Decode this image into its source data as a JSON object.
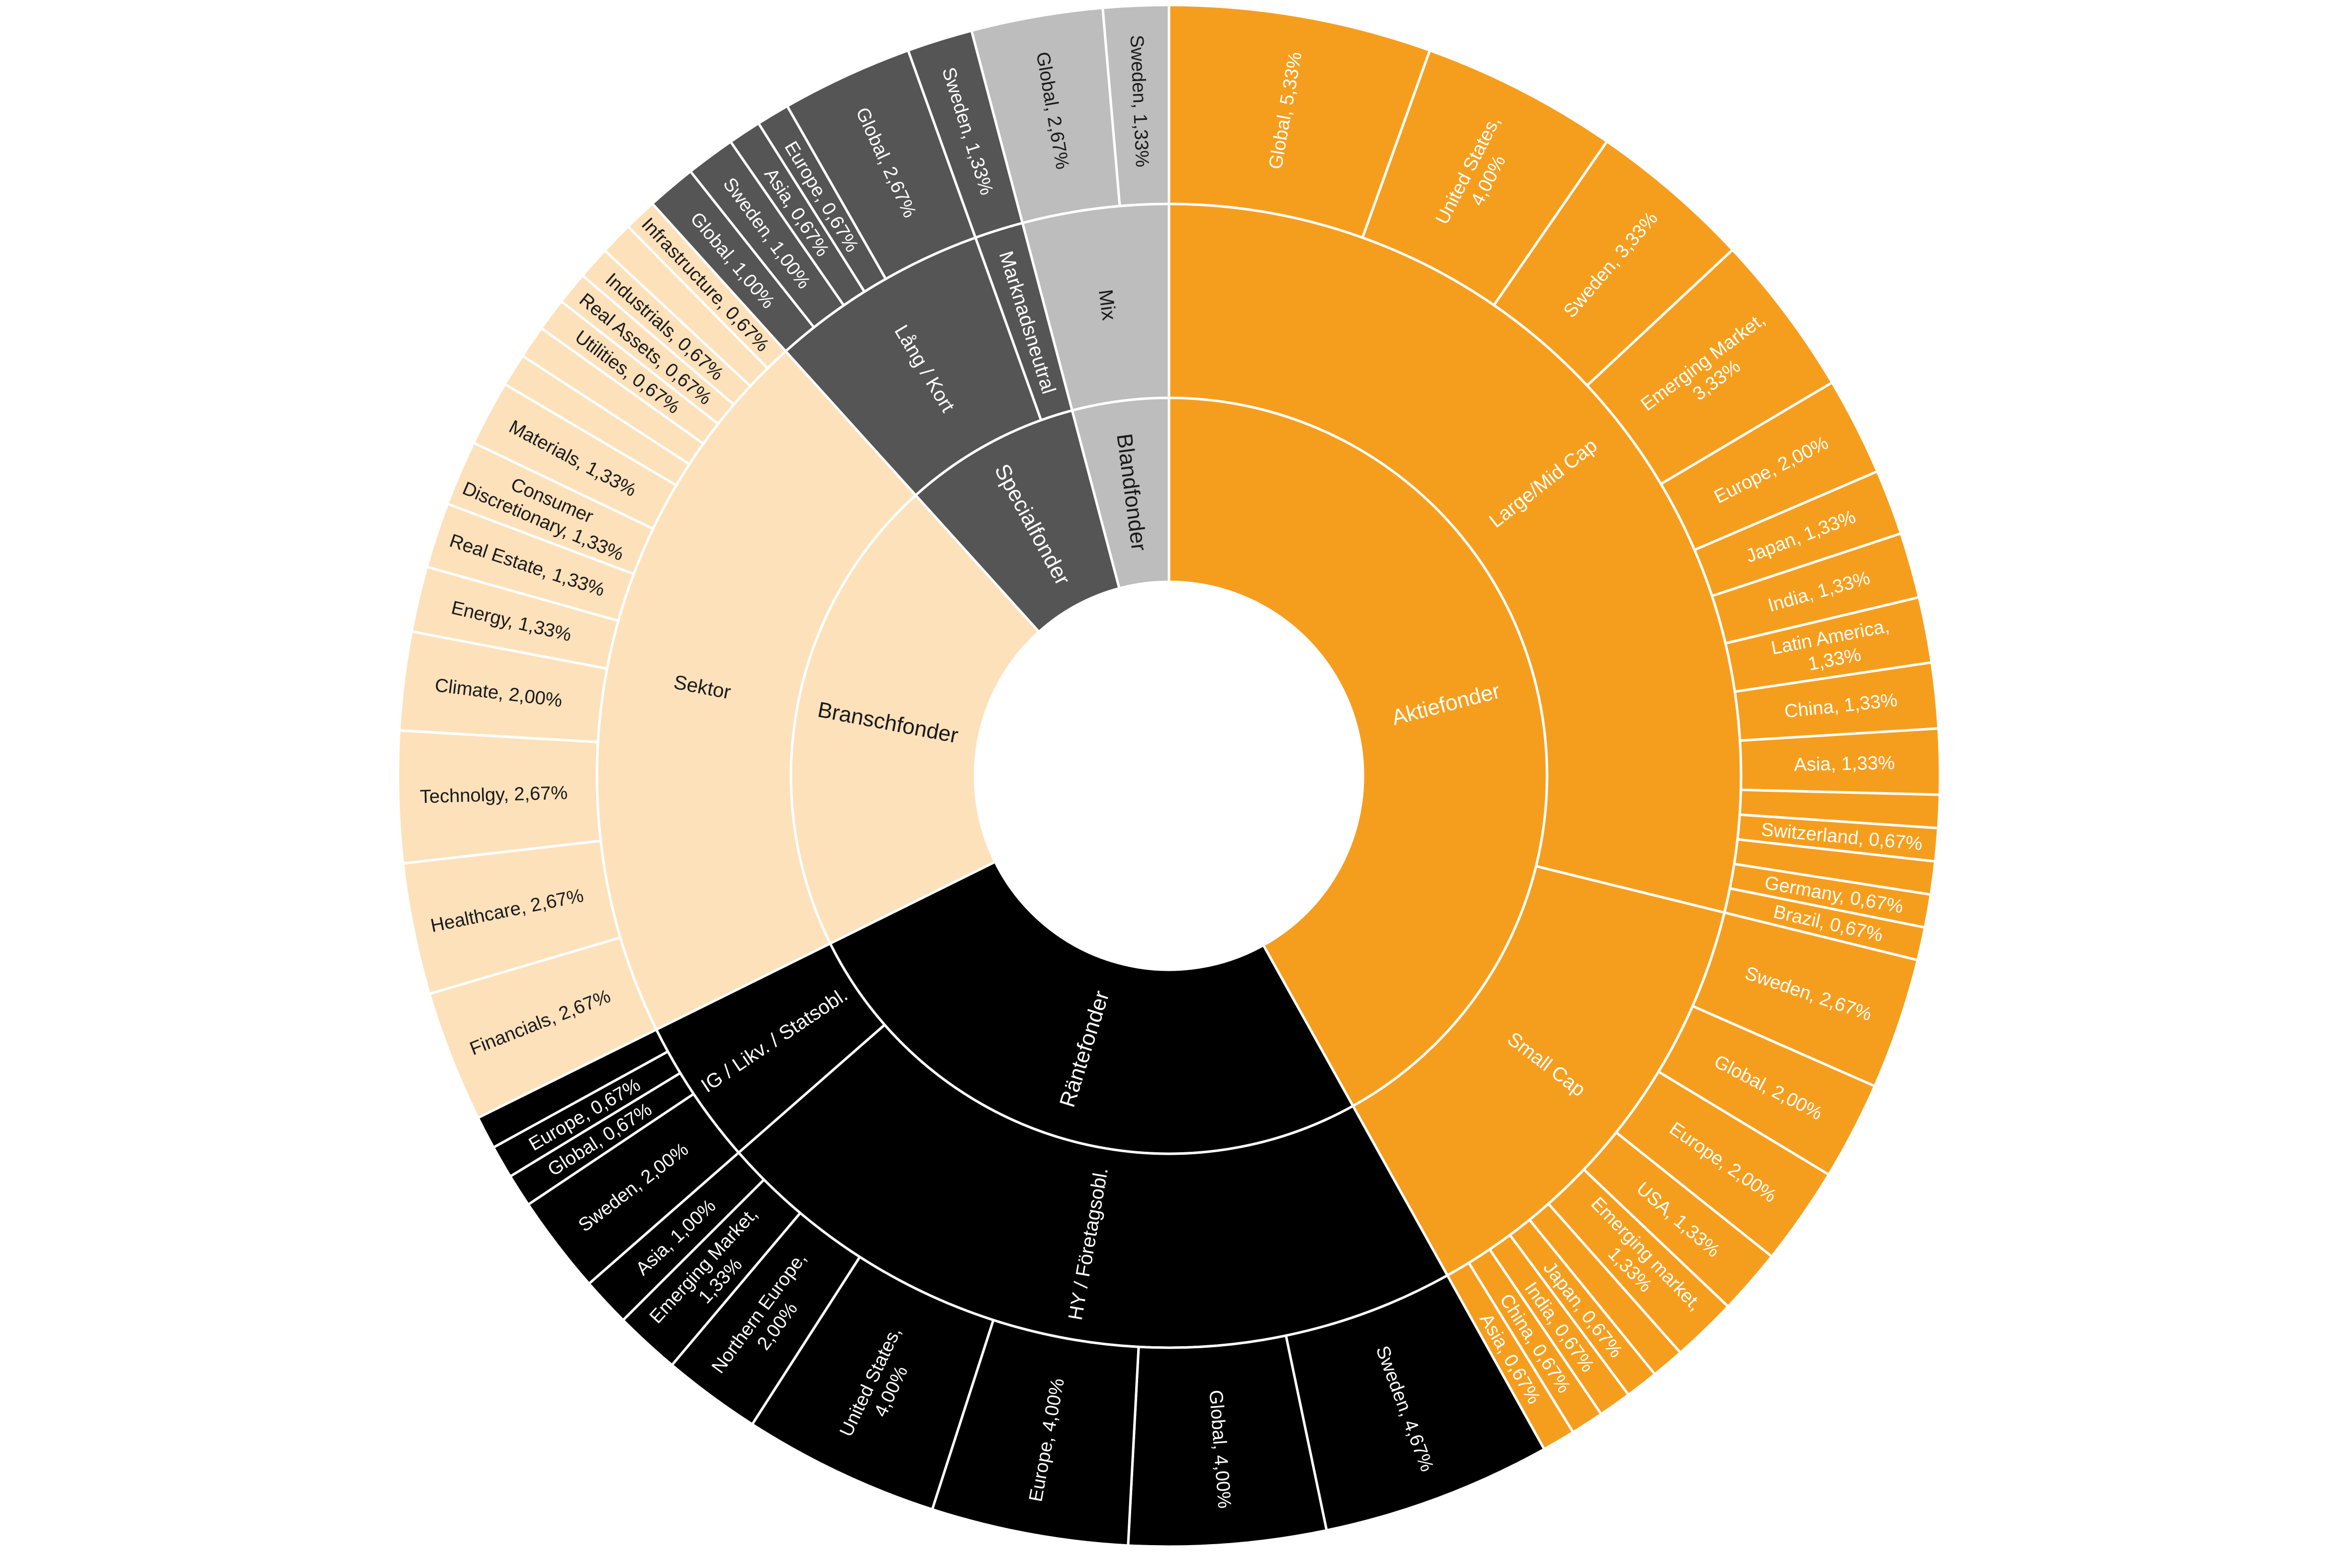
{
  "chart_data": {
    "type": "sunburst",
    "colors": {
      "Aktiefonder": "#F59E1E",
      "Räntefonder": "#000000",
      "Branschfonder": "#FCE1BB",
      "Specialfonder": "#555555",
      "Blandfonder": "#BDBDBD",
      "text_dark": "#1a1a1a",
      "text_light": "#ffffff",
      "border": "#ffffff"
    },
    "tree": [
      {
        "name": "Aktiefonder",
        "children": [
          {
            "name": "Large/Mid Cap",
            "children": [
              {
                "name": "Global",
                "value": 5.33
              },
              {
                "name": "United States",
                "value": 4.0,
                "label": "United States,\n4,00%"
              },
              {
                "name": "Sweden",
                "value": 3.33
              },
              {
                "name": "Emerging Market",
                "value": 3.33,
                "label": "Emerging Market,\n3,33%"
              },
              {
                "name": "Europe",
                "value": 2.0
              },
              {
                "name": "Japan",
                "value": 1.33
              },
              {
                "name": "India",
                "value": 1.33
              },
              {
                "name": "Latin America",
                "value": 1.33,
                "label": "Latin America,\n1,33%"
              },
              {
                "name": "China",
                "value": 1.33
              },
              {
                "name": "Asia",
                "value": 1.33
              },
              {
                "name": "",
                "value": 0.67,
                "label": ""
              },
              {
                "name": "Switzerland",
                "value": 0.67
              },
              {
                "name": "",
                "value": 0.67,
                "label": ""
              },
              {
                "name": "Germany",
                "value": 0.67
              },
              {
                "name": "Brazil",
                "value": 0.67
              }
            ]
          },
          {
            "name": "Small Cap",
            "children": [
              {
                "name": "Sweden",
                "value": 2.67
              },
              {
                "name": "Global",
                "value": 2.0
              },
              {
                "name": "Europe",
                "value": 2.0
              },
              {
                "name": "USA",
                "value": 1.33
              },
              {
                "name": "Emerging market",
                "value": 1.33,
                "label": "Emerging market,\n1,33%"
              },
              {
                "name": "",
                "value": 0.67,
                "label": ""
              },
              {
                "name": "Japan",
                "value": 0.67
              },
              {
                "name": "India",
                "value": 0.67
              },
              {
                "name": "China",
                "value": 0.67
              },
              {
                "name": "Asia",
                "value": 0.67
              }
            ]
          }
        ]
      },
      {
        "name": "Räntefonder",
        "children": [
          {
            "name": "HY / Företagsobl.",
            "children": [
              {
                "name": "Sweden",
                "value": 4.67
              },
              {
                "name": "Global",
                "value": 4.0
              },
              {
                "name": "Europe",
                "value": 4.0
              },
              {
                "name": "United States",
                "value": 4.0,
                "label": "United States,\n4,00%"
              },
              {
                "name": "Northern Europe",
                "value": 2.0,
                "label": "Northern Europe,\n2,00%"
              },
              {
                "name": "Emerging Market",
                "value": 1.33,
                "label": "Emerging Market,\n1,33%"
              },
              {
                "name": "Asia",
                "value": 1.0
              }
            ]
          },
          {
            "name": "IG / Likv. / Statsobl.",
            "children": [
              {
                "name": "Sweden",
                "value": 2.0
              },
              {
                "name": "Global",
                "value": 0.67
              },
              {
                "name": "Europe",
                "value": 0.67
              },
              {
                "name": "",
                "value": 0.67,
                "label": ""
              }
            ]
          }
        ]
      },
      {
        "name": "Branschfonder",
        "children": [
          {
            "name": "Sektor",
            "children": [
              {
                "name": "Financials",
                "value": 2.67
              },
              {
                "name": "Healthcare",
                "value": 2.67
              },
              {
                "name": "Technolgy",
                "value": 2.67
              },
              {
                "name": "Climate",
                "value": 2.0
              },
              {
                "name": "Energy",
                "value": 1.33
              },
              {
                "name": "Real Estate",
                "value": 1.33
              },
              {
                "name": "Consumer Discretionary",
                "value": 1.33,
                "label": "Consumer\nDiscretionary, 1,33%"
              },
              {
                "name": "Materials",
                "value": 1.33
              },
              {
                "name": "",
                "value": 0.67,
                "label": ""
              },
              {
                "name": "",
                "value": 0.67,
                "label": ""
              },
              {
                "name": "Utilities",
                "value": 0.67
              },
              {
                "name": "Real Assets",
                "value": 0.67
              },
              {
                "name": "Industrials",
                "value": 0.67
              },
              {
                "name": "",
                "value": 0.67,
                "label": ""
              },
              {
                "name": "Infrastructure",
                "value": 0.67
              }
            ]
          }
        ]
      },
      {
        "name": "Specialfonder",
        "children": [
          {
            "name": "Lång / Kort",
            "children": [
              {
                "name": "Global",
                "value": 1.0
              },
              {
                "name": "Sweden",
                "value": 1.0
              },
              {
                "name": "Asia",
                "value": 0.67
              },
              {
                "name": "Europe",
                "value": 0.67
              },
              {
                "name": "Global",
                "value": 2.67
              }
            ]
          },
          {
            "name": "Marknadsneutral",
            "children": [
              {
                "name": "Sweden",
                "value": 1.33
              }
            ]
          }
        ]
      },
      {
        "name": "Blandfonder",
        "children": [
          {
            "name": "Mix",
            "children": [
              {
                "name": "Global",
                "value": 2.67
              },
              {
                "name": "Sweden",
                "value": 1.33
              }
            ]
          }
        ]
      }
    ]
  }
}
